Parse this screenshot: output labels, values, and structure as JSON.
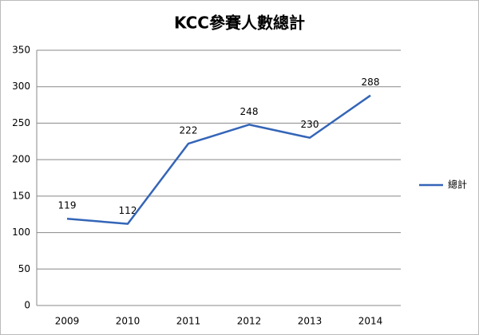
{
  "chart_data": {
    "type": "line",
    "title": "KCC參賽人數總計",
    "categories": [
      "2009",
      "2010",
      "2011",
      "2012",
      "2013",
      "2014"
    ],
    "series": [
      {
        "name": "總計",
        "color": "#3465b7",
        "values": [
          119,
          112,
          222,
          248,
          230,
          288
        ]
      }
    ],
    "ylim": [
      0,
      350
    ],
    "yticks": [
      0,
      50,
      100,
      150,
      200,
      250,
      300,
      350
    ],
    "grid": true,
    "legend": "right"
  }
}
